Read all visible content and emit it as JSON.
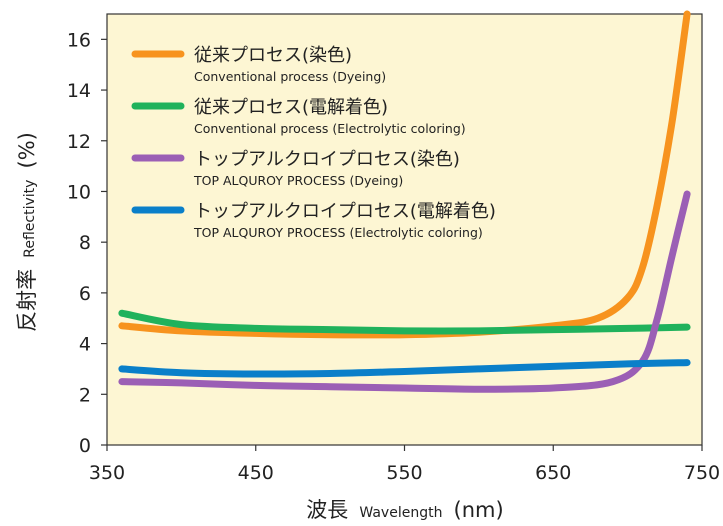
{
  "chart_data": {
    "type": "line",
    "title": "",
    "xlabel_jp": "波長",
    "xlabel_en": "Wavelength",
    "xlabel_unit": "(nm)",
    "ylabel_jp": "反射率",
    "ylabel_en": "Reflectivity",
    "ylabel_unit": "(%)",
    "xlim": [
      350,
      750
    ],
    "ylim": [
      0,
      17
    ],
    "x_ticks": [
      350,
      450,
      550,
      650,
      750
    ],
    "y_ticks": [
      0,
      2,
      4,
      6,
      8,
      10,
      12,
      14,
      16
    ],
    "plot_background": "#fdf6d3",
    "grid": false,
    "legend_position": "top-left",
    "series": [
      {
        "name": "従来プロセス(染色)",
        "name_en": "Conventional process (Dyeing)",
        "color": "#f7931e",
        "x": [
          360,
          400,
          450,
          500,
          550,
          600,
          650,
          680,
          700,
          710,
          720,
          730,
          740
        ],
        "y": [
          4.7,
          4.5,
          4.4,
          4.35,
          4.35,
          4.45,
          4.7,
          5.0,
          5.8,
          7.0,
          9.5,
          12.8,
          17.0
        ]
      },
      {
        "name": "従来プロセス(電解着色)",
        "name_en": "Conventional process (Electrolytic coloring)",
        "color": "#20b25c",
        "x": [
          360,
          400,
          450,
          500,
          550,
          600,
          650,
          700,
          740
        ],
        "y": [
          5.2,
          4.75,
          4.6,
          4.55,
          4.5,
          4.5,
          4.55,
          4.6,
          4.65
        ]
      },
      {
        "name": "トップアルクロイプロセス(染色)",
        "name_en": "TOP ALQUROY PROCESS (Dyeing)",
        "color": "#9b5fb5",
        "x": [
          360,
          400,
          450,
          500,
          550,
          600,
          650,
          690,
          710,
          720,
          730,
          740
        ],
        "y": [
          2.5,
          2.45,
          2.35,
          2.3,
          2.25,
          2.2,
          2.25,
          2.5,
          3.3,
          5.0,
          7.5,
          9.9
        ]
      },
      {
        "name": "トップアルクロイプロセス(電解着色)",
        "name_en": "TOP ALQUROY PROCESS (Electrolytic coloring)",
        "color": "#0a7fc9",
        "x": [
          360,
          400,
          450,
          500,
          550,
          600,
          650,
          700,
          740
        ],
        "y": [
          3.0,
          2.85,
          2.8,
          2.82,
          2.9,
          3.0,
          3.1,
          3.2,
          3.25
        ]
      }
    ]
  }
}
